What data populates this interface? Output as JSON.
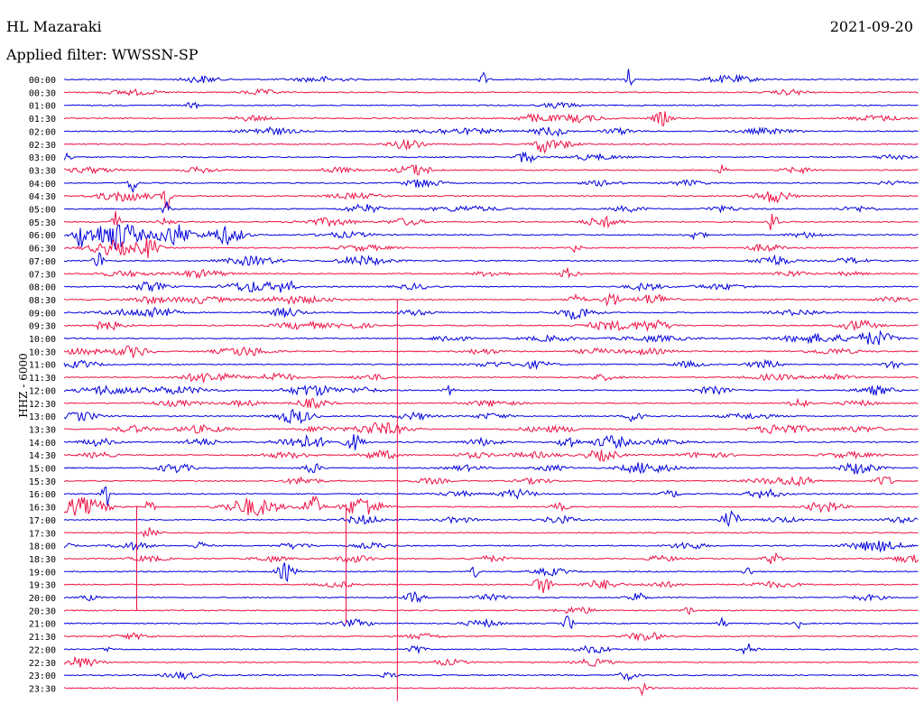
{
  "header": {
    "station": "HL Mazaraki",
    "date": "2021-09-20",
    "filter": "Applied filter: WWSSN-SP"
  },
  "chart_data": {
    "type": "line",
    "title": "HL Mazaraki",
    "date": "2021-09-20",
    "filter": "Applied filter: WWSSN-SP",
    "ylabel": "HHZ - 6000",
    "colors": {
      "even": "#0000dd",
      "odd": "#ee1144"
    },
    "row_labels": [
      "00:00",
      "00:30",
      "01:00",
      "01:30",
      "02:00",
      "02:30",
      "03:00",
      "03:30",
      "04:00",
      "04:30",
      "05:00",
      "05:30",
      "06:00",
      "06:30",
      "07:00",
      "07:30",
      "08:00",
      "08:30",
      "09:00",
      "09:30",
      "10:00",
      "10:30",
      "11:00",
      "11:30",
      "12:00",
      "12:30",
      "13:00",
      "13:30",
      "14:00",
      "14:30",
      "15:00",
      "15:30",
      "16:00",
      "16:30",
      "17:00",
      "17:30",
      "18:00",
      "18:30",
      "19:00",
      "19:30",
      "20:00",
      "20:30",
      "21:00",
      "21:30",
      "22:00",
      "22:30",
      "23:00",
      "23:30"
    ],
    "events": [
      [
        [
          0.16,
          4,
          0.02
        ],
        [
          0.3,
          3,
          0.03
        ],
        [
          0.49,
          8,
          0.005
        ],
        [
          0.66,
          12,
          0.005
        ],
        [
          0.78,
          4,
          0.03
        ]
      ],
      [
        [
          0.08,
          3,
          0.03
        ],
        [
          0.23,
          3,
          0.02
        ],
        [
          0.85,
          3,
          0.02
        ]
      ],
      [
        [
          0.15,
          7,
          0.005
        ],
        [
          0.58,
          3,
          0.02
        ]
      ],
      [
        [
          0.22,
          3,
          0.02
        ],
        [
          0.55,
          4,
          0.02
        ],
        [
          0.6,
          4,
          0.03
        ],
        [
          0.7,
          8,
          0.01
        ],
        [
          0.95,
          3,
          0.03
        ]
      ],
      [
        [
          0.24,
          4,
          0.03
        ],
        [
          0.46,
          3,
          0.05
        ],
        [
          0.57,
          5,
          0.02
        ],
        [
          0.65,
          3,
          0.02
        ],
        [
          0.82,
          3,
          0.03
        ]
      ],
      [
        [
          0.4,
          5,
          0.02
        ],
        [
          0.56,
          8,
          0.01
        ],
        [
          0.58,
          4,
          0.02
        ]
      ],
      [
        [
          0.0,
          5,
          0.01
        ],
        [
          0.54,
          7,
          0.01
        ],
        [
          0.62,
          3,
          0.03
        ],
        [
          0.97,
          3,
          0.02
        ]
      ],
      [
        [
          0.03,
          3,
          0.03
        ],
        [
          0.16,
          3,
          0.02
        ],
        [
          0.32,
          3,
          0.02
        ],
        [
          0.41,
          6,
          0.02
        ],
        [
          0.77,
          6,
          0.005
        ],
        [
          0.86,
          3,
          0.02
        ]
      ],
      [
        [
          0.08,
          14,
          0.005
        ],
        [
          0.42,
          5,
          0.02
        ],
        [
          0.63,
          3,
          0.02
        ],
        [
          0.73,
          3,
          0.02
        ],
        [
          0.97,
          2,
          0.02
        ]
      ],
      [
        [
          0.07,
          6,
          0.03
        ],
        [
          0.12,
          14,
          0.005
        ],
        [
          0.34,
          3,
          0.03
        ],
        [
          0.83,
          7,
          0.02
        ]
      ],
      [
        [
          0.12,
          16,
          0.005
        ],
        [
          0.35,
          5,
          0.02
        ],
        [
          0.47,
          3,
          0.04
        ],
        [
          0.66,
          3,
          0.02
        ],
        [
          0.77,
          3,
          0.02
        ],
        [
          0.93,
          3,
          0.02
        ]
      ],
      [
        [
          0.06,
          13,
          0.005
        ],
        [
          0.12,
          4,
          0.01
        ],
        [
          0.31,
          4,
          0.03
        ],
        [
          0.4,
          4,
          0.02
        ],
        [
          0.63,
          6,
          0.02
        ],
        [
          0.83,
          13,
          0.005
        ]
      ],
      [
        [
          0.02,
          12,
          0.008
        ],
        [
          0.06,
          16,
          0.03
        ],
        [
          0.13,
          12,
          0.02
        ],
        [
          0.19,
          10,
          0.02
        ],
        [
          0.33,
          3,
          0.03
        ],
        [
          0.74,
          5,
          0.01
        ],
        [
          0.87,
          3,
          0.02
        ]
      ],
      [
        [
          0.06,
          8,
          0.03
        ],
        [
          0.1,
          10,
          0.01
        ],
        [
          0.35,
          3,
          0.03
        ],
        [
          0.6,
          6,
          0.005
        ],
        [
          0.82,
          4,
          0.02
        ]
      ],
      [
        [
          0.04,
          14,
          0.005
        ],
        [
          0.22,
          5,
          0.03
        ],
        [
          0.35,
          5,
          0.03
        ],
        [
          0.83,
          6,
          0.02
        ],
        [
          0.92,
          3,
          0.02
        ]
      ],
      [
        [
          0.07,
          3,
          0.03
        ],
        [
          0.16,
          4,
          0.03
        ],
        [
          0.5,
          3,
          0.02
        ],
        [
          0.59,
          6,
          0.01
        ],
        [
          0.85,
          3,
          0.02
        ],
        [
          0.92,
          2,
          0.02
        ]
      ],
      [
        [
          0.1,
          5,
          0.02
        ],
        [
          0.22,
          6,
          0.03
        ],
        [
          0.26,
          7,
          0.01
        ],
        [
          0.41,
          3,
          0.02
        ],
        [
          0.68,
          4,
          0.02
        ],
        [
          0.77,
          3,
          0.03
        ]
      ],
      [
        [
          0.1,
          4,
          0.02
        ],
        [
          0.16,
          4,
          0.03
        ],
        [
          0.27,
          4,
          0.04
        ],
        [
          0.6,
          5,
          0.01
        ],
        [
          0.64,
          10,
          0.008
        ],
        [
          0.69,
          6,
          0.02
        ],
        [
          0.97,
          3,
          0.02
        ]
      ],
      [
        [
          0.07,
          3,
          0.03
        ],
        [
          0.11,
          6,
          0.02
        ],
        [
          0.26,
          5,
          0.02
        ],
        [
          0.41,
          3,
          0.02
        ],
        [
          0.6,
          7,
          0.02
        ],
        [
          0.86,
          3,
          0.03
        ]
      ],
      [
        [
          0.05,
          5,
          0.02
        ],
        [
          0.28,
          4,
          0.03
        ],
        [
          0.34,
          3,
          0.02
        ],
        [
          0.64,
          5,
          0.03
        ],
        [
          0.69,
          6,
          0.02
        ],
        [
          0.93,
          6,
          0.02
        ]
      ],
      [
        [
          0.45,
          4,
          0.02
        ],
        [
          0.57,
          3,
          0.03
        ],
        [
          0.69,
          3,
          0.04
        ],
        [
          0.88,
          5,
          0.04
        ],
        [
          0.95,
          8,
          0.02
        ]
      ],
      [
        [
          0.02,
          3,
          0.03
        ],
        [
          0.08,
          6,
          0.02
        ],
        [
          0.21,
          5,
          0.03
        ],
        [
          0.49,
          3,
          0.02
        ],
        [
          0.62,
          3,
          0.02
        ],
        [
          0.68,
          3,
          0.03
        ],
        [
          0.9,
          3,
          0.03
        ]
      ],
      [
        [
          0.02,
          4,
          0.02
        ],
        [
          0.5,
          3,
          0.02
        ],
        [
          0.55,
          4,
          0.02
        ],
        [
          0.73,
          3,
          0.02
        ],
        [
          0.82,
          4,
          0.02
        ],
        [
          0.97,
          5,
          0.01
        ]
      ],
      [
        [
          0.17,
          6,
          0.03
        ],
        [
          0.25,
          5,
          0.02
        ],
        [
          0.36,
          3,
          0.02
        ],
        [
          0.63,
          3,
          0.02
        ],
        [
          0.83,
          3,
          0.03
        ],
        [
          0.9,
          4,
          0.02
        ]
      ],
      [
        [
          0.05,
          5,
          0.03
        ],
        [
          0.13,
          4,
          0.04
        ],
        [
          0.29,
          6,
          0.03
        ],
        [
          0.35,
          3,
          0.02
        ],
        [
          0.45,
          6,
          0.005
        ],
        [
          0.76,
          4,
          0.02
        ],
        [
          0.95,
          5,
          0.02
        ]
      ],
      [
        [
          0.13,
          3,
          0.03
        ],
        [
          0.21,
          3,
          0.02
        ],
        [
          0.29,
          5,
          0.02
        ],
        [
          0.5,
          3,
          0.03
        ],
        [
          0.86,
          6,
          0.01
        ],
        [
          0.93,
          3,
          0.02
        ]
      ],
      [
        [
          0.02,
          5,
          0.02
        ],
        [
          0.27,
          8,
          0.02
        ],
        [
          0.41,
          4,
          0.02
        ],
        [
          0.5,
          3,
          0.02
        ],
        [
          0.67,
          8,
          0.01
        ],
        [
          0.8,
          3,
          0.03
        ]
      ],
      [
        [
          0.08,
          4,
          0.02
        ],
        [
          0.16,
          4,
          0.03
        ],
        [
          0.3,
          3,
          0.02
        ],
        [
          0.37,
          7,
          0.03
        ],
        [
          0.57,
          3,
          0.04
        ],
        [
          0.84,
          6,
          0.03
        ],
        [
          0.93,
          3,
          0.03
        ]
      ],
      [
        [
          0.04,
          4,
          0.02
        ],
        [
          0.16,
          4,
          0.02
        ],
        [
          0.28,
          7,
          0.03
        ],
        [
          0.34,
          9,
          0.01
        ],
        [
          0.49,
          4,
          0.02
        ],
        [
          0.59,
          8,
          0.01
        ],
        [
          0.64,
          7,
          0.02
        ],
        [
          0.7,
          3,
          0.03
        ]
      ],
      [
        [
          0.04,
          3,
          0.02
        ],
        [
          0.26,
          3,
          0.03
        ],
        [
          0.37,
          5,
          0.02
        ],
        [
          0.48,
          3,
          0.02
        ],
        [
          0.55,
          3,
          0.03
        ],
        [
          0.63,
          6,
          0.02
        ],
        [
          0.75,
          3,
          0.03
        ],
        [
          0.92,
          3,
          0.03
        ]
      ],
      [
        [
          0.13,
          5,
          0.02
        ],
        [
          0.29,
          6,
          0.01
        ],
        [
          0.47,
          3,
          0.02
        ],
        [
          0.57,
          3,
          0.02
        ],
        [
          0.67,
          3,
          0.02
        ],
        [
          0.69,
          4,
          0.03
        ],
        [
          0.93,
          7,
          0.02
        ]
      ],
      [
        [
          0.28,
          4,
          0.02
        ],
        [
          0.43,
          3,
          0.02
        ],
        [
          0.55,
          3,
          0.02
        ],
        [
          0.83,
          3,
          0.03
        ],
        [
          0.86,
          4,
          0.02
        ],
        [
          0.96,
          6,
          0.01
        ]
      ],
      [
        [
          0.05,
          14,
          0.005
        ],
        [
          0.46,
          3,
          0.02
        ],
        [
          0.53,
          5,
          0.02
        ],
        [
          0.71,
          4,
          0.01
        ],
        [
          0.82,
          5,
          0.02
        ]
      ],
      [
        [
          0.02,
          10,
          0.03
        ],
        [
          0.1,
          12,
          0.005
        ],
        [
          0.22,
          10,
          0.03
        ],
        [
          0.29,
          14,
          0.01
        ],
        [
          0.35,
          12,
          0.02
        ],
        [
          0.58,
          4,
          0.01
        ],
        [
          0.89,
          6,
          0.02
        ]
      ],
      [
        [
          0.35,
          5,
          0.02
        ],
        [
          0.46,
          3,
          0.02
        ],
        [
          0.58,
          4,
          0.02
        ],
        [
          0.78,
          10,
          0.01
        ],
        [
          0.84,
          3,
          0.02
        ],
        [
          0.98,
          3,
          0.02
        ]
      ],
      [
        [
          0.1,
          6,
          0.01
        ]
      ],
      [
        [
          0.0,
          3,
          0.01
        ],
        [
          0.08,
          4,
          0.02
        ],
        [
          0.16,
          4,
          0.01
        ],
        [
          0.27,
          3,
          0.02
        ],
        [
          0.36,
          3,
          0.02
        ],
        [
          0.73,
          4,
          0.02
        ],
        [
          0.95,
          6,
          0.03
        ]
      ],
      [
        [
          0.1,
          3,
          0.02
        ],
        [
          0.24,
          3,
          0.02
        ],
        [
          0.34,
          4,
          0.02
        ],
        [
          0.5,
          3,
          0.02
        ],
        [
          0.7,
          3,
          0.02
        ],
        [
          0.83,
          6,
          0.01
        ],
        [
          0.99,
          4,
          0.02
        ]
      ],
      [
        [
          0.26,
          10,
          0.01
        ],
        [
          0.48,
          6,
          0.005
        ],
        [
          0.57,
          4,
          0.02
        ],
        [
          0.8,
          6,
          0.005
        ]
      ],
      [
        [
          0.32,
          3,
          0.02
        ],
        [
          0.56,
          10,
          0.01
        ],
        [
          0.63,
          5,
          0.02
        ],
        [
          0.7,
          3,
          0.02
        ],
        [
          0.83,
          3,
          0.03
        ]
      ],
      [
        [
          0.03,
          3,
          0.01
        ],
        [
          0.41,
          6,
          0.01
        ],
        [
          0.5,
          3,
          0.02
        ],
        [
          0.67,
          6,
          0.01
        ],
        [
          0.94,
          3,
          0.02
        ]
      ],
      [
        [
          0.73,
          5,
          0.005
        ],
        [
          0.6,
          4,
          0.02
        ]
      ],
      [
        [
          0.34,
          4,
          0.02
        ],
        [
          0.49,
          4,
          0.02
        ],
        [
          0.59,
          10,
          0.005
        ],
        [
          0.77,
          7,
          0.005
        ],
        [
          0.86,
          5,
          0.005
        ]
      ],
      [
        [
          0.08,
          3,
          0.02
        ],
        [
          0.42,
          3,
          0.02
        ],
        [
          0.68,
          5,
          0.02
        ]
      ],
      [
        [
          0.05,
          2,
          0.01
        ],
        [
          0.41,
          5,
          0.01
        ],
        [
          0.62,
          4,
          0.02
        ],
        [
          0.8,
          6,
          0.01
        ]
      ],
      [
        [
          0.02,
          6,
          0.02
        ],
        [
          0.45,
          3,
          0.02
        ],
        [
          0.62,
          4,
          0.02
        ]
      ],
      [
        [
          0.14,
          4,
          0.02
        ],
        [
          0.38,
          3,
          0.01
        ],
        [
          0.66,
          5,
          0.01
        ]
      ],
      [
        [
          0.68,
          14,
          0.005
        ]
      ]
    ],
    "spikes": [
      {
        "x": 0.39,
        "from": 17,
        "to": 48,
        "color": "odd"
      },
      {
        "x": 0.085,
        "from": 33,
        "to": 41,
        "color": "odd"
      },
      {
        "x": 0.39,
        "from": 32,
        "to": 40,
        "color": "odd"
      },
      {
        "x": 0.33,
        "from": 33,
        "to": 42,
        "color": "odd"
      }
    ]
  }
}
